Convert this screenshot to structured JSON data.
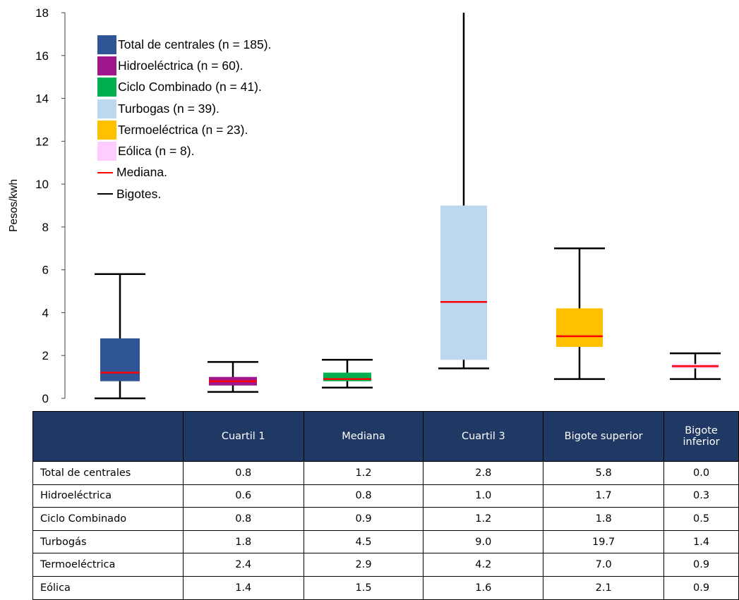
{
  "chart_data": {
    "type": "boxplot",
    "ylabel": "Pesos/kwh",
    "ylim": [
      0,
      18
    ],
    "yticks": [
      0,
      2,
      4,
      6,
      8,
      10,
      12,
      14,
      16,
      18
    ],
    "grid": false,
    "legend_position": "top-left",
    "series": [
      {
        "name": "Total de centrales",
        "legend": "Total de centrales (n = 185).",
        "color": "#2F5597",
        "q1": 0.8,
        "median": 1.2,
        "q3": 2.8,
        "whisker_high": 5.8,
        "whisker_low": 0.0
      },
      {
        "name": "Hidroeléctrica",
        "legend": "Hidroeléctrica (n = 60).",
        "color": "#A0178C",
        "q1": 0.6,
        "median": 0.8,
        "q3": 1.0,
        "whisker_high": 1.7,
        "whisker_low": 0.3
      },
      {
        "name": "Ciclo Combinado",
        "legend": "Ciclo Combinado (n = 41).",
        "color": "#00B050",
        "q1": 0.8,
        "median": 0.9,
        "q3": 1.2,
        "whisker_high": 1.8,
        "whisker_low": 0.5
      },
      {
        "name": "Turbogás",
        "legend": "Turbogas (n = 39).",
        "color": "#BDD7EE",
        "q1": 1.8,
        "median": 4.5,
        "q3": 9.0,
        "whisker_high": 19.7,
        "whisker_low": 1.4
      },
      {
        "name": "Termoeléctrica",
        "legend": "Termoeléctrica (n = 23).",
        "color": "#FFC000",
        "q1": 2.4,
        "median": 2.9,
        "q3": 4.2,
        "whisker_high": 7.0,
        "whisker_low": 0.9
      },
      {
        "name": "Eólica",
        "legend": "Eólica (n = 8).",
        "color": "#FFCCFF",
        "q1": 1.4,
        "median": 1.5,
        "q3": 1.6,
        "whisker_high": 2.1,
        "whisker_low": 0.9
      }
    ],
    "median_legend": "Mediana.",
    "whisker_legend": "Bigotes.",
    "median_color": "#FF0000",
    "whisker_color": "#000000"
  },
  "table": {
    "headers": [
      "",
      "Cuartil 1",
      "Mediana",
      "Cuartil 3",
      "Bigote superior",
      "Bigote inferior"
    ],
    "rows": [
      [
        "Total de centrales",
        "0.8",
        "1.2",
        "2.8",
        "5.8",
        "0.0"
      ],
      [
        "Hidroeléctrica",
        "0.6",
        "0.8",
        "1.0",
        "1.7",
        "0.3"
      ],
      [
        "Ciclo Combinado",
        "0.8",
        "0.9",
        "1.2",
        "1.8",
        "0.5"
      ],
      [
        "Turbogás",
        "1.8",
        "4.5",
        "9.0",
        "19.7",
        "1.4"
      ],
      [
        "Termoeléctrica",
        "2.4",
        "2.9",
        "4.2",
        "7.0",
        "0.9"
      ],
      [
        "Eólica",
        "1.4",
        "1.5",
        "1.6",
        "2.1",
        "0.9"
      ]
    ],
    "header_color": "#203864"
  }
}
